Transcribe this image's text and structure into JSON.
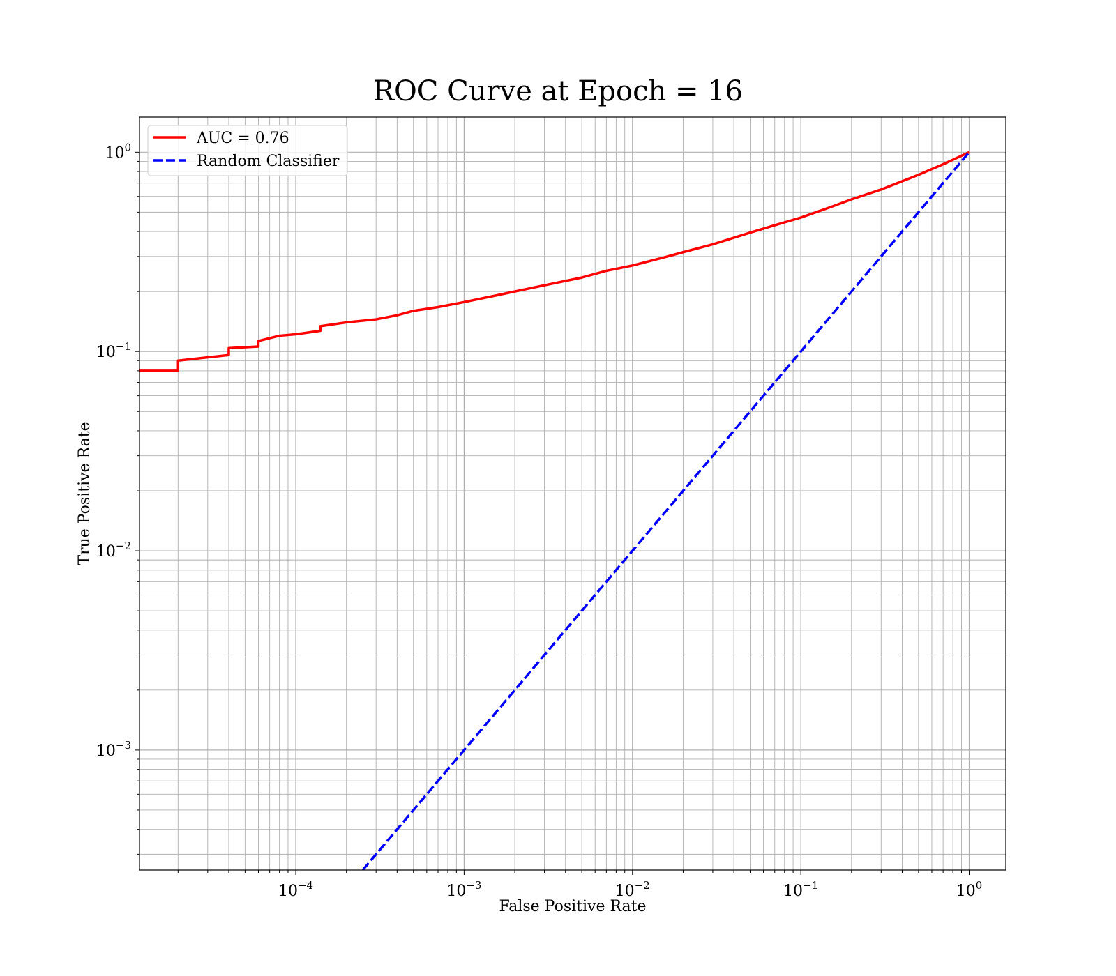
{
  "chart_data": {
    "type": "line",
    "title": "ROC Curve at Epoch = 16",
    "xlabel": "False Positive Rate",
    "ylabel": "True Positive Rate",
    "xscale": "log",
    "yscale": "log",
    "xlim": [
      1.18e-05,
      1.65
    ],
    "ylim": [
      0.00025,
      1.5
    ],
    "grid": true,
    "legend_position": "top-left",
    "xticks": [
      {
        "exp": "-4",
        "value": 0.0001
      },
      {
        "exp": "-3",
        "value": 0.001
      },
      {
        "exp": "-2",
        "value": 0.01
      },
      {
        "exp": "-1",
        "value": 0.1
      },
      {
        "exp": "0",
        "value": 1
      }
    ],
    "yticks": [
      {
        "exp": "-3",
        "value": 0.001
      },
      {
        "exp": "-2",
        "value": 0.01
      },
      {
        "exp": "-1",
        "value": 0.1
      },
      {
        "exp": "0",
        "value": 1
      }
    ],
    "tick_base": "10",
    "series": [
      {
        "name": "AUC = 0.76",
        "color": "#ff0000",
        "style": "solid",
        "x": [
          1.18e-05,
          2e-05,
          2e-05,
          4e-05,
          4e-05,
          6e-05,
          6e-05,
          8e-05,
          0.0001,
          0.00014,
          0.00014,
          0.0002,
          0.0003,
          0.0004,
          0.0005,
          0.0007,
          0.001,
          0.0015,
          0.002,
          0.003,
          0.005,
          0.007,
          0.01,
          0.015,
          0.02,
          0.03,
          0.05,
          0.07,
          0.1,
          0.15,
          0.2,
          0.3,
          0.5,
          0.7,
          1.0
        ],
        "y": [
          0.08,
          0.08,
          0.09,
          0.096,
          0.104,
          0.106,
          0.113,
          0.12,
          0.122,
          0.127,
          0.134,
          0.14,
          0.145,
          0.152,
          0.16,
          0.167,
          0.177,
          0.19,
          0.2,
          0.215,
          0.235,
          0.254,
          0.27,
          0.295,
          0.315,
          0.345,
          0.395,
          0.43,
          0.47,
          0.53,
          0.58,
          0.65,
          0.77,
          0.87,
          1.0
        ]
      },
      {
        "name": "Random Classifier",
        "color": "#0000ff",
        "style": "dashed",
        "x": [
          0.00025,
          1.0
        ],
        "y": [
          0.00025,
          1.0
        ]
      }
    ]
  }
}
